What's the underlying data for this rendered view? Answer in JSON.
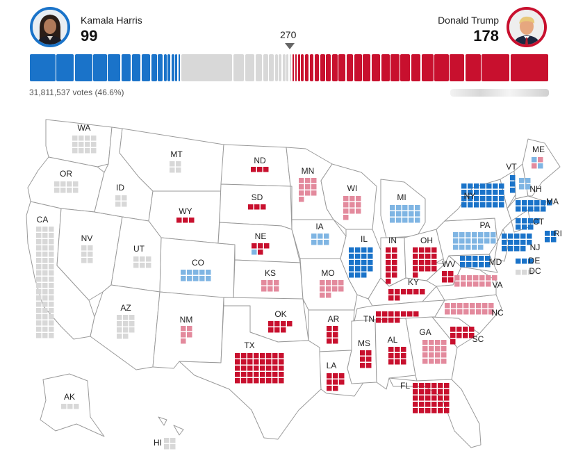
{
  "harris": {
    "name": "Kamala Harris",
    "electoral_votes": "99",
    "popular_vote": "31,811,537 votes (46.6%)",
    "color": "#1a73c9"
  },
  "trump": {
    "name": "Donald Trump",
    "electoral_votes": "178",
    "color": "#c8102e"
  },
  "threshold": "270",
  "colors": {
    "safe_dem": "#1a73c9",
    "lean_dem": "#7fb5e3",
    "safe_rep": "#c8102e",
    "lean_rep": "#e38a9d",
    "uncalled": "#d8d8d8"
  },
  "states": [
    {
      "abbr": "WA",
      "status": "uncalled",
      "ev": 12
    },
    {
      "abbr": "OR",
      "status": "uncalled",
      "ev": 8
    },
    {
      "abbr": "CA",
      "status": "uncalled",
      "ev": 54
    },
    {
      "abbr": "NV",
      "status": "uncalled",
      "ev": 6
    },
    {
      "abbr": "ID",
      "status": "uncalled",
      "ev": 4
    },
    {
      "abbr": "MT",
      "status": "uncalled",
      "ev": 4
    },
    {
      "abbr": "WY",
      "status": "safe_rep",
      "ev": 3
    },
    {
      "abbr": "UT",
      "status": "uncalled",
      "ev": 6
    },
    {
      "abbr": "AZ",
      "status": "uncalled",
      "ev": 11
    },
    {
      "abbr": "CO",
      "status": "lean_dem",
      "ev": 10
    },
    {
      "abbr": "NM",
      "status": "lean_rep",
      "ev": 5
    },
    {
      "abbr": "ND",
      "status": "safe_rep",
      "ev": 3
    },
    {
      "abbr": "SD",
      "status": "safe_rep",
      "ev": 3
    },
    {
      "abbr": "NE",
      "status": "split",
      "ev": 5
    },
    {
      "abbr": "KS",
      "status": "lean_rep",
      "ev": 6
    },
    {
      "abbr": "OK",
      "status": "safe_rep",
      "ev": 7
    },
    {
      "abbr": "TX",
      "status": "safe_rep",
      "ev": 40
    },
    {
      "abbr": "MN",
      "status": "lean_rep",
      "ev": 10
    },
    {
      "abbr": "IA",
      "status": "lean_dem",
      "ev": 6
    },
    {
      "abbr": "MO",
      "status": "lean_rep",
      "ev": 10
    },
    {
      "abbr": "AR",
      "status": "safe_rep",
      "ev": 6
    },
    {
      "abbr": "LA",
      "status": "safe_rep",
      "ev": 8
    },
    {
      "abbr": "WI",
      "status": "lean_rep",
      "ev": 10
    },
    {
      "abbr": "IL",
      "status": "safe_dem",
      "ev": 19
    },
    {
      "abbr": "MI",
      "status": "lean_dem",
      "ev": 15
    },
    {
      "abbr": "IN",
      "status": "safe_rep",
      "ev": 11
    },
    {
      "abbr": "OH",
      "status": "safe_rep",
      "ev": 17
    },
    {
      "abbr": "KY",
      "status": "safe_rep",
      "ev": 8
    },
    {
      "abbr": "TN",
      "status": "safe_rep",
      "ev": 11
    },
    {
      "abbr": "MS",
      "status": "safe_rep",
      "ev": 6
    },
    {
      "abbr": "AL",
      "status": "safe_rep",
      "ev": 9
    },
    {
      "abbr": "GA",
      "status": "lean_rep",
      "ev": 16
    },
    {
      "abbr": "FL",
      "status": "safe_rep",
      "ev": 30
    },
    {
      "abbr": "SC",
      "status": "safe_rep",
      "ev": 9
    },
    {
      "abbr": "NC",
      "status": "lean_rep",
      "ev": 16
    },
    {
      "abbr": "WV",
      "status": "safe_rep",
      "ev": 4
    },
    {
      "abbr": "VA",
      "status": "lean_rep",
      "ev": 13
    },
    {
      "abbr": "PA",
      "status": "lean_dem",
      "ev": 19
    },
    {
      "abbr": "NY",
      "status": "safe_dem",
      "ev": 28
    },
    {
      "abbr": "VT",
      "status": "safe_dem",
      "ev": 3
    },
    {
      "abbr": "NH",
      "status": "lean_dem",
      "ev": 4
    },
    {
      "abbr": "ME",
      "status": "split",
      "ev": 4
    },
    {
      "abbr": "MA",
      "status": "safe_dem",
      "ev": 11
    },
    {
      "abbr": "CT",
      "status": "safe_dem",
      "ev": 7
    },
    {
      "abbr": "RI",
      "status": "safe_dem",
      "ev": 4
    },
    {
      "abbr": "NJ",
      "status": "safe_dem",
      "ev": 14
    },
    {
      "abbr": "DE",
      "status": "safe_dem",
      "ev": 3
    },
    {
      "abbr": "MD",
      "status": "safe_dem",
      "ev": 10
    },
    {
      "abbr": "DC",
      "status": "uncalled",
      "ev": 3
    },
    {
      "abbr": "AK",
      "status": "uncalled",
      "ev": 3
    },
    {
      "abbr": "HI",
      "status": "uncalled",
      "ev": 4
    }
  ]
}
